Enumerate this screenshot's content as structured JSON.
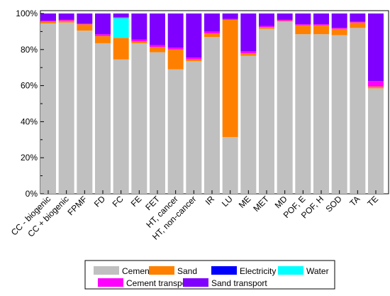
{
  "chart_data": {
    "type": "bar",
    "stacked": true,
    "title": "",
    "xlabel": "",
    "ylabel": "",
    "ylim": [
      0,
      100
    ],
    "yticks": [
      "0%",
      "20%",
      "40%",
      "60%",
      "80%",
      "100%"
    ],
    "yticks_values": [
      0,
      20,
      40,
      60,
      80,
      100
    ],
    "grid": false,
    "legend_position": "bottom",
    "categories": [
      "CC - biogenic",
      "CC + biogenic",
      "FPMF",
      "FD",
      "FC",
      "FE",
      "FET",
      "HT, cancer",
      "HT, non-cancer",
      "IR",
      "LU",
      "ME",
      "MET",
      "MD",
      "POF, E",
      "POF, H",
      "SOD",
      "TA",
      "TE"
    ],
    "series": [
      {
        "name": "Cement",
        "color": "#c0c0c0",
        "values": [
          94.5,
          95,
          90.5,
          83.5,
          74.5,
          83.5,
          78.5,
          69,
          73.5,
          87,
          31.5,
          76.5,
          91.5,
          95.5,
          88.5,
          88.5,
          88,
          92,
          58.5
        ]
      },
      {
        "name": "Sand",
        "color": "#ff8000",
        "values": [
          1,
          1,
          3.5,
          4,
          12,
          1,
          3,
          11,
          1,
          2,
          65,
          1.5,
          1,
          0.5,
          5,
          5,
          3.5,
          3,
          1
        ]
      },
      {
        "name": "Electricity",
        "color": "#0000ff",
        "values": [
          0,
          0,
          0,
          0,
          0,
          0,
          0,
          0,
          0,
          0,
          0,
          0,
          0,
          0,
          0,
          0,
          0,
          0,
          0
        ]
      },
      {
        "name": "Water",
        "color": "#00ffff",
        "values": [
          0,
          0,
          0,
          0,
          11,
          0,
          0,
          0,
          0,
          0,
          0,
          0,
          0,
          0,
          0,
          0,
          0,
          0,
          0
        ]
      },
      {
        "name": "Cement transport",
        "color": "#ff00ff",
        "values": [
          0.5,
          0.5,
          0.5,
          1,
          0.5,
          1,
          1,
          1,
          1,
          1,
          0.5,
          1,
          0.5,
          0.5,
          0.5,
          0.5,
          0.5,
          0.5,
          3
        ]
      },
      {
        "name": "Sand transport",
        "color": "#8000ff",
        "values": [
          4,
          3.5,
          5.5,
          11.5,
          2,
          14.5,
          17.5,
          19,
          24.5,
          10,
          3,
          21,
          7,
          3.5,
          6,
          6,
          8,
          4.5,
          37.5
        ]
      }
    ],
    "legend_layout": [
      [
        "Cement",
        "Sand",
        "Electricity",
        "Water"
      ],
      [
        "Cement transport",
        "Sand transport"
      ]
    ]
  }
}
